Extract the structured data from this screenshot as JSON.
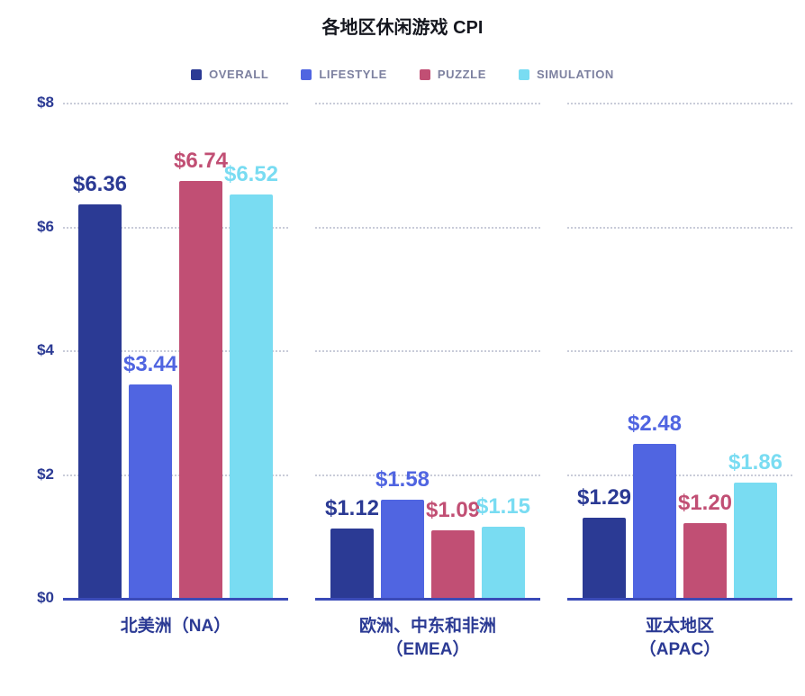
{
  "title": "各地区休闲游戏 CPI",
  "y_axis": {
    "ticks": [
      "$8",
      "$6",
      "$4",
      "$2",
      "$0"
    ]
  },
  "colors": {
    "axis_text": "#2b3a94",
    "baseline": "#3a4ab8",
    "gridline": "#c9ccd9"
  },
  "chart_data": {
    "type": "bar",
    "title": "各地区休闲游戏 CPI",
    "categories": [
      "北美洲（NA）",
      "欧洲、中东和非洲\n（EMEA）",
      "亚太地区\n（APAC）"
    ],
    "series": [
      {
        "name": "OVERALL",
        "color": "#2b3a94",
        "values": [
          6.36,
          1.12,
          1.29
        ]
      },
      {
        "name": "LIFESTYLE",
        "color": "#5065e1",
        "values": [
          3.44,
          1.58,
          2.48
        ]
      },
      {
        "name": "PUZZLE",
        "color": "#c14f74",
        "values": [
          6.74,
          1.09,
          1.2
        ]
      },
      {
        "name": "SIMULATION",
        "color": "#79dcf2",
        "values": [
          6.52,
          1.15,
          1.86
        ]
      }
    ],
    "value_prefix": "$",
    "value_decimals": 2,
    "ylim": [
      0,
      8
    ],
    "grid": "dotted-horizontal",
    "legend_position": "top",
    "ylabel": "",
    "xlabel": ""
  }
}
